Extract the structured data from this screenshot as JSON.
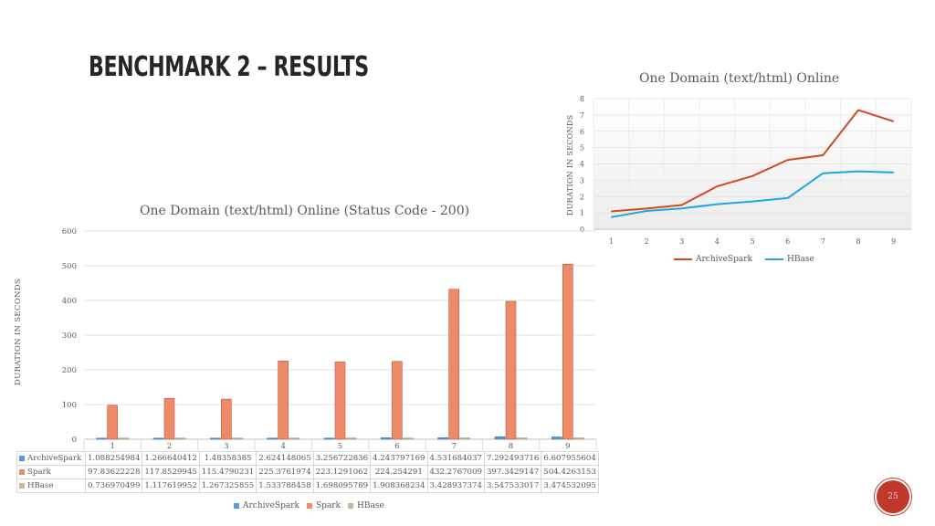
{
  "slide": {
    "title": "BENCHMARK 2 – RESULTS",
    "page_number": "25"
  },
  "colors": {
    "archivespark": "#d04a1f",
    "hbase": "#1fa6e0",
    "spark": "#ed8a6a",
    "bar_blue": "#5b9bd5",
    "bar_gray": "#c8b89a"
  },
  "chart_data": [
    {
      "type": "line",
      "title": "One Domain (text/html) Online",
      "ylabel": "DURATION IN SECONDS",
      "xlabel": "",
      "x": [
        1,
        2,
        3,
        4,
        5,
        6,
        7,
        8,
        9
      ],
      "ylim": [
        0,
        8
      ],
      "yticks": [
        0,
        1,
        2,
        3,
        4,
        5,
        6,
        7,
        8
      ],
      "grid": true,
      "legend": "bottom",
      "series": [
        {
          "name": "ArchiveSpark",
          "values": [
            1.088254984,
            1.266640412,
            1.48358385,
            2.624148065,
            3.256722836,
            4.243797169,
            4.531684037,
            7.292493716,
            6.607955604
          ]
        },
        {
          "name": "HBase",
          "values": [
            0.736970499,
            1.117619952,
            1.267325855,
            1.533788458,
            1.698095789,
            1.908368234,
            3.428937374,
            3.547533017,
            3.474532095
          ]
        }
      ]
    },
    {
      "type": "bar",
      "title": "One Domain (text/html) Online (Status Code - 200)",
      "ylabel": "DURATION IN SECONDS",
      "xlabel": "",
      "categories": [
        "1",
        "2",
        "3",
        "4",
        "5",
        "6",
        "7",
        "8",
        "9"
      ],
      "ylim": [
        0,
        600
      ],
      "yticks": [
        0,
        100,
        200,
        300,
        400,
        500,
        600
      ],
      "grid": true,
      "legend": "bottom",
      "series": [
        {
          "name": "ArchiveSpark",
          "values": [
            1.088254984,
            1.266640412,
            1.48358385,
            2.624148065,
            3.256722836,
            4.243797169,
            4.531684037,
            7.292493716,
            6.607955604
          ],
          "labels": [
            "1.088254984",
            "1.266640412",
            "1.48358385",
            "2.624148065",
            "3.256722836",
            "4.243797169",
            "4.531684037",
            "7.292493716",
            "6.607955604"
          ]
        },
        {
          "name": "Spark",
          "values": [
            97.83622228,
            117.8529945,
            115.4790231,
            225.3761974,
            223.1291062,
            224.254291,
            432.2767009,
            397.3429147,
            504.4263153
          ],
          "labels": [
            "97.83622228",
            "117.8529945",
            "115.4790231",
            "225.3761974",
            "223.1291062",
            "224.254291",
            "432.2767009",
            "397.3429147",
            "504.4263153"
          ]
        },
        {
          "name": "HBase",
          "values": [
            0.736970499,
            1.117619952,
            1.267325855,
            1.533788458,
            1.698095789,
            1.908368234,
            3.428937374,
            3.547533017,
            3.474532095
          ],
          "labels": [
            "0.736970499",
            "1.117619952",
            "1.267325855",
            "1.533788458",
            "1.698095789",
            "1.908368234",
            "3.428937374",
            "3.547533017",
            "3.474532095"
          ]
        }
      ]
    }
  ]
}
